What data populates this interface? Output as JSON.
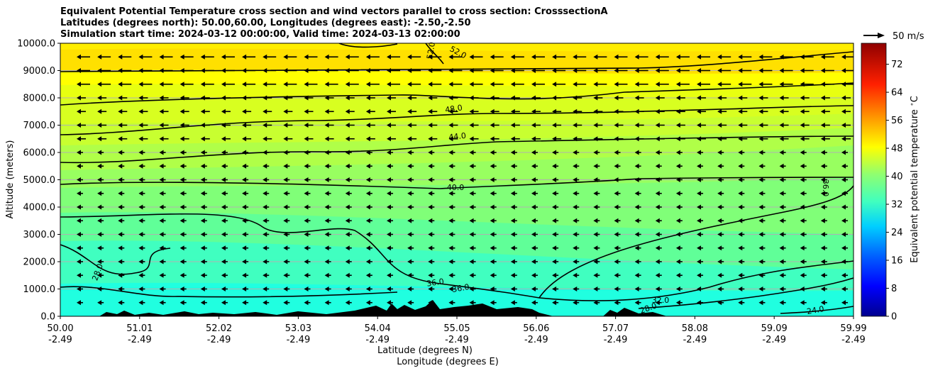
{
  "chart_data": {
    "type": "heatmap",
    "title_lines": [
      "Equivalent Potential Temperature cross section and wind vectors parallel to cross section: CrosssectionA",
      "Latitudes (degrees north): 50.00,60.00, Longitudes (degrees east): -2.50,-2.50",
      "Simulation start time: 2024-03-12 00:00:00, Valid time: 2024-03-13 02:00:00"
    ],
    "ylabel": "Altitude (meters)",
    "xlabel_lines": [
      "Latitude (degrees N)",
      "Longitude (degrees E)"
    ],
    "ylim": [
      0,
      10000
    ],
    "yticks": [
      "0.0",
      "1000.0",
      "2000.0",
      "3000.0",
      "4000.0",
      "5000.0",
      "6000.0",
      "7000.0",
      "8000.0",
      "9000.0",
      "10000.0"
    ],
    "xticks_lat": [
      "50.00",
      "51.01",
      "52.02",
      "53.03",
      "54.04",
      "55.05",
      "56.06",
      "57.07",
      "58.08",
      "59.09",
      "59.99"
    ],
    "xticks_lon": [
      "-2.49",
      "-2.49",
      "-2.49",
      "-2.49",
      "-2.49",
      "-2.49",
      "-2.49",
      "-2.49",
      "-2.49",
      "-2.49",
      "-2.49"
    ],
    "xlim": [
      50.0,
      59.99
    ],
    "colorbar": {
      "label": "Equivalent potential temperature $^\\circ$C",
      "ticks": [
        "0",
        "8",
        "16",
        "24",
        "32",
        "40",
        "48",
        "56",
        "64",
        "72"
      ],
      "range": [
        0,
        78
      ]
    },
    "quiver_key": "50 m/s",
    "contour_labels": [
      "52.0",
      "52.0",
      "48.0",
      "44.0",
      "40.0",
      "36.0",
      "36.0",
      "36.0",
      "32.0",
      "28.0",
      "24.0",
      "28.0"
    ],
    "grid": "horizontal"
  }
}
